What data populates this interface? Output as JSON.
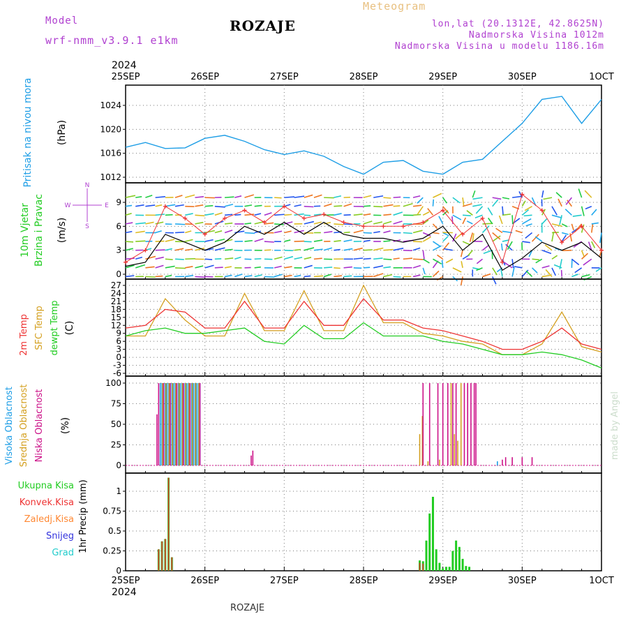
{
  "header": {
    "model_label": "Model",
    "model_name": "wrf-nmm_v3.9.1 e1km",
    "station": "ROZAJE",
    "meteogram": "Meteogram",
    "lonlat": "lon,lat (20.1312E, 42.8625N)",
    "elevation": "Nadmorska Visina 1012m",
    "model_elevation": "Nadmorska Visina u modelu 1186.16m"
  },
  "footer": {
    "station": "ROZAJE",
    "credit": "made by Angel"
  },
  "colors": {
    "pressure": "#1e9ee6",
    "wind_speed": "#000000",
    "gust": "#ee3333",
    "temp2m": "#ee3333",
    "sfc_temp": "#d4a020",
    "dewpoint": "#22cc22",
    "cloud_high": "#1e9ee6",
    "cloud_mid": "#d4a020",
    "cloud_low": "#cc1188",
    "precip_total": "#22cc22",
    "precip_conv": "#ee3333",
    "precip_frozen": "#ff8833",
    "precip_snow": "#3333dd",
    "precip_hail": "#22cccc",
    "label_purple": "#b040d0",
    "label_tan": "#e8c080"
  },
  "chart_data": [
    {
      "type": "line",
      "title": "",
      "ylabel_vertical": "Pritisak na nivou mora",
      "unit_label": "(hPa)",
      "ylim": [
        1012,
        1028
      ],
      "yticks": [
        "1012",
        "1016",
        "1020",
        "1024"
      ],
      "x_year_top": "2024",
      "x_year_bottom": "2024",
      "xticks": [
        "25SEP",
        "26SEP",
        "27SEP",
        "28SEP",
        "29SEP",
        "30SEP",
        "1OCT"
      ],
      "x_hours": [
        0,
        6,
        12,
        18,
        24,
        30,
        36,
        42,
        48,
        54,
        60,
        66,
        72,
        78,
        84,
        90,
        96,
        102,
        108,
        114,
        120,
        126,
        132,
        138,
        144
      ],
      "series": [
        {
          "values": [
            1017,
            1017.8,
            1016.8,
            1016.9,
            1018.5,
            1019.0,
            1018.0,
            1016.6,
            1015.8,
            1016.4,
            1015.5,
            1013.8,
            1012.5,
            1014.5,
            1014.8,
            1013.0,
            1012.5,
            1014.5,
            1015.0,
            1018.0,
            1021.0,
            1025.0,
            1025.5,
            1021.0,
            1025.0
          ]
        }
      ]
    },
    {
      "type": "line",
      "title": "",
      "ylabel_vertical": [
        "10m Vjetar",
        "Brzina i Pravac"
      ],
      "unit_label": "(m/s)",
      "ylim": [
        -1,
        11.5
      ],
      "yticks": [
        "0",
        "3",
        "6",
        "9"
      ],
      "compass": {
        "n": "N",
        "s": "S",
        "e": "E",
        "w": "W"
      },
      "x_hours": [
        0,
        6,
        12,
        18,
        24,
        30,
        36,
        42,
        48,
        54,
        60,
        66,
        72,
        78,
        84,
        90,
        96,
        102,
        108,
        114,
        120,
        126,
        132,
        138,
        144
      ],
      "series": [
        {
          "name": "wind speed",
          "values": [
            1.0,
            1.5,
            5.0,
            4.0,
            3.0,
            4.0,
            6.0,
            5.0,
            6.5,
            5.0,
            6.5,
            5.0,
            4.5,
            4.5,
            4.0,
            4.5,
            6.0,
            3.0,
            5.0,
            0.5,
            2.0,
            4.0,
            3.0,
            4.0,
            2.0
          ]
        },
        {
          "name": "gust",
          "values": [
            1.5,
            3.0,
            8.5,
            7.0,
            5.0,
            7.0,
            8.0,
            6.5,
            8.5,
            7.0,
            7.5,
            6.5,
            6.0,
            6.0,
            6.0,
            6.5,
            8.0,
            5.0,
            7.0,
            1.5,
            10.0,
            8.0,
            4.0,
            6.0,
            3.0
          ]
        }
      ]
    },
    {
      "type": "line",
      "title": "",
      "ylabel_vertical": [
        "2m Temp",
        "SFC Temp",
        "dewpt Temp"
      ],
      "unit_label": "(C)",
      "ylim": [
        -6,
        28
      ],
      "yticks": [
        "-6",
        "-3",
        "0",
        "3",
        "6",
        "9",
        "12",
        "15",
        "18",
        "21",
        "24",
        "27"
      ],
      "x_hours": [
        0,
        6,
        12,
        18,
        24,
        30,
        36,
        42,
        48,
        54,
        60,
        66,
        72,
        78,
        84,
        90,
        96,
        102,
        108,
        114,
        120,
        126,
        132,
        138,
        144
      ],
      "series": [
        {
          "name": "2m Temp",
          "values": [
            11,
            12,
            18,
            17,
            11,
            11,
            21,
            11,
            11,
            21,
            12,
            12,
            22,
            14,
            14,
            11,
            10,
            8,
            6,
            3,
            3,
            6,
            11,
            5,
            3
          ]
        },
        {
          "name": "SFC Temp",
          "values": [
            8,
            8,
            22,
            14,
            8,
            8,
            24,
            10,
            10,
            25,
            10,
            10,
            27,
            13,
            13,
            9,
            8,
            6,
            5,
            1,
            1,
            5,
            17,
            4,
            2
          ]
        },
        {
          "name": "dewpt Temp",
          "values": [
            8,
            10,
            11,
            9,
            9,
            10,
            11,
            6,
            5,
            12,
            7,
            7,
            13,
            8,
            8,
            8,
            6,
            5,
            3,
            1,
            1,
            2,
            1,
            -1,
            -4
          ]
        }
      ]
    },
    {
      "type": "bar",
      "title": "",
      "ylabel_vertical": [
        "Visoka Oblacnost",
        "Srednja Oblacnost",
        "Niska Oblacnost"
      ],
      "unit_label": "(%)",
      "ylim": [
        0,
        100
      ],
      "yticks": [
        "0",
        "25",
        "50",
        "75",
        "100"
      ],
      "series": [
        {
          "name": "Visoka Oblacnost",
          "points": [
            [
              10.5,
              100
            ],
            [
              11.0,
              100
            ],
            [
              11.5,
              100
            ],
            [
              12.0,
              100
            ],
            [
              12.5,
              100
            ],
            [
              13.0,
              100
            ],
            [
              13.5,
              100
            ],
            [
              14.0,
              100
            ],
            [
              14.5,
              100
            ],
            [
              15.0,
              100
            ],
            [
              15.5,
              100
            ],
            [
              16.0,
              100
            ],
            [
              16.5,
              100
            ],
            [
              17.0,
              100
            ],
            [
              17.5,
              100
            ],
            [
              18.0,
              100
            ],
            [
              18.5,
              100
            ],
            [
              19.0,
              100
            ],
            [
              19.5,
              100
            ],
            [
              20.0,
              100
            ],
            [
              20.5,
              100
            ],
            [
              21.0,
              100
            ],
            [
              21.5,
              100
            ],
            [
              22.0,
              100
            ],
            [
              22.5,
              100
            ],
            [
              112.5,
              5
            ]
          ]
        },
        {
          "name": "Srednja Oblacnost",
          "points": [
            [
              11.2,
              100
            ],
            [
              12.2,
              100
            ],
            [
              13.2,
              100
            ],
            [
              14.2,
              100
            ],
            [
              15.2,
              100
            ],
            [
              16.2,
              100
            ],
            [
              17.2,
              100
            ],
            [
              18.2,
              100
            ],
            [
              19.2,
              100
            ],
            [
              20.2,
              100
            ],
            [
              21.2,
              100
            ],
            [
              22.2,
              100
            ],
            [
              89.0,
              38
            ],
            [
              89.8,
              60
            ],
            [
              91.5,
              5
            ],
            [
              95.0,
              7
            ],
            [
              98.5,
              100
            ],
            [
              99.5,
              38
            ],
            [
              100.5,
              30
            ],
            [
              101.5,
              100
            ]
          ]
        },
        {
          "name": "Niska Oblacnost",
          "points": [
            [
              9.5,
              62
            ],
            [
              10.0,
              100
            ],
            [
              11.5,
              100
            ],
            [
              13.5,
              100
            ],
            [
              15.5,
              100
            ],
            [
              17.5,
              100
            ],
            [
              19.5,
              100
            ],
            [
              22.5,
              100
            ],
            [
              38.0,
              12
            ],
            [
              38.5,
              18
            ],
            [
              90.0,
              100
            ],
            [
              92.0,
              100
            ],
            [
              94.5,
              100
            ],
            [
              96.0,
              100
            ],
            [
              97.5,
              100
            ],
            [
              99.0,
              100
            ],
            [
              100.0,
              100
            ],
            [
              102.5,
              100
            ],
            [
              103.5,
              100
            ],
            [
              104.5,
              100
            ],
            [
              105.5,
              100
            ],
            [
              106.0,
              100
            ],
            [
              114.0,
              7
            ],
            [
              115.0,
              10
            ],
            [
              117.0,
              10
            ],
            [
              120.0,
              10
            ],
            [
              123.0,
              10
            ]
          ]
        }
      ]
    },
    {
      "type": "bar",
      "title": "",
      "ylabel_vertical": "1hr Precip",
      "unit_label": "(mm)",
      "ylim": [
        0,
        1.25
      ],
      "yticks": [
        "0",
        "0.25",
        "0.5",
        "0.75",
        "1"
      ],
      "legend": [
        "Ukupna Kisa",
        "Konvek.Kisa",
        "Zaledj.Kisa",
        "Snijeg",
        "Grad"
      ],
      "series": [
        {
          "name": "Ukupna Kisa",
          "points": [
            [
              10,
              0.27
            ],
            [
              11,
              0.37
            ],
            [
              12,
              0.4
            ],
            [
              13,
              1.17
            ],
            [
              14,
              0.17
            ],
            [
              89,
              0.13
            ],
            [
              90,
              0.12
            ],
            [
              91,
              0.38
            ],
            [
              92,
              0.72
            ],
            [
              93,
              0.93
            ],
            [
              94,
              0.27
            ],
            [
              95,
              0.1
            ],
            [
              96,
              0.03
            ],
            [
              97,
              0.05
            ],
            [
              98,
              0.05
            ],
            [
              99,
              0.25
            ],
            [
              100,
              0.38
            ],
            [
              101,
              0.3
            ],
            [
              102,
              0.15
            ],
            [
              103,
              0.06
            ],
            [
              104,
              0.05
            ]
          ]
        },
        {
          "name": "Konvek.Kisa",
          "points": [
            [
              10,
              0.27
            ],
            [
              11,
              0.37
            ],
            [
              12,
              0.4
            ],
            [
              13,
              1.17
            ],
            [
              14,
              0.17
            ],
            [
              89,
              0.1
            ],
            [
              90,
              0.09
            ]
          ]
        }
      ]
    }
  ]
}
